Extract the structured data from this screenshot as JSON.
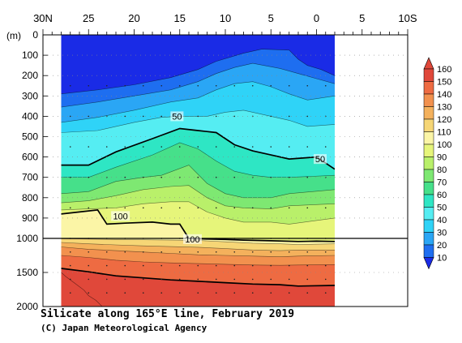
{
  "chart_data": {
    "type": "heatmap",
    "title": "Silicate along 165°E line, February 2019",
    "credit": "(C) Japan Meteorological Agency",
    "xlabel": "",
    "ylabel": "(m)",
    "x_ticks": [
      "30N",
      "25",
      "20",
      "15",
      "10",
      "5",
      "0",
      "5",
      "10S"
    ],
    "x_tick_lat": [
      30,
      25,
      20,
      15,
      10,
      5,
      0,
      -5,
      -10
    ],
    "xlim": [
      30,
      -10
    ],
    "data_lat_range": [
      28,
      -2
    ],
    "y_ticks_upper": [
      0,
      100,
      200,
      300,
      400,
      500,
      600,
      700,
      800,
      900,
      1000
    ],
    "y_ticks_lower": [
      1000,
      1500,
      2000
    ],
    "ylim": [
      0,
      2000
    ],
    "colorbar": {
      "levels": [
        10,
        20,
        30,
        40,
        50,
        60,
        70,
        80,
        90,
        100,
        110,
        120,
        130,
        140,
        150,
        160
      ],
      "labels": [
        "10",
        "20",
        "30",
        "40",
        "50",
        "60",
        "70",
        "80",
        "90",
        "100",
        "110",
        "120",
        "130",
        "140",
        "150",
        "160"
      ],
      "colors": [
        "#1a2be6",
        "#1e6ef0",
        "#2aa6f5",
        "#2fd3f7",
        "#55edf2",
        "#2ee6c4",
        "#46e08a",
        "#7ee872",
        "#b9f06a",
        "#e6f57a",
        "#fbf5a6",
        "#f6d676",
        "#f4b15c",
        "#f2914e",
        "#ee6b42",
        "#e0483a"
      ]
    },
    "contour_labels": [
      {
        "text": "50",
        "lat": 15.3,
        "depth": 400
      },
      {
        "text": "50",
        "lat": -0.4,
        "depth": 610
      },
      {
        "text": "100",
        "lat": 21.5,
        "depth": 890
      },
      {
        "text": "100",
        "lat": 13.6,
        "depth": 1010
      }
    ],
    "isolines": [
      {
        "value": 10,
        "points": [
          [
            28,
            290
          ],
          [
            24,
            270
          ],
          [
            20,
            245
          ],
          [
            16,
            210
          ],
          [
            13,
            170
          ],
          [
            11,
            130
          ],
          [
            8,
            90
          ],
          [
            6,
            70
          ],
          [
            3,
            75
          ],
          [
            2,
            120
          ],
          [
            1,
            150
          ],
          [
            -0.5,
            170
          ],
          [
            -2,
            200
          ]
        ]
      },
      {
        "value": 20,
        "points": [
          [
            28,
            355
          ],
          [
            24,
            330
          ],
          [
            20,
            300
          ],
          [
            16,
            270
          ],
          [
            13,
            230
          ],
          [
            11,
            190
          ],
          [
            9,
            160
          ],
          [
            7,
            140
          ],
          [
            4,
            165
          ],
          [
            2,
            190
          ],
          [
            0,
            215
          ],
          [
            -2,
            240
          ]
        ]
      },
      {
        "value": 30,
        "points": [
          [
            28,
            430
          ],
          [
            24,
            405
          ],
          [
            20,
            370
          ],
          [
            16,
            330
          ],
          [
            13,
            310
          ],
          [
            11,
            270
          ],
          [
            9,
            240
          ],
          [
            7,
            230
          ],
          [
            5,
            255
          ],
          [
            3,
            290
          ],
          [
            1,
            320
          ],
          [
            -2,
            300
          ]
        ]
      },
      {
        "value": 40,
        "points": [
          [
            28,
            480
          ],
          [
            24,
            470
          ],
          [
            20,
            430
          ],
          [
            17,
            405
          ],
          [
            15,
            400
          ],
          [
            12,
            400
          ],
          [
            10,
            380
          ],
          [
            8,
            370
          ],
          [
            5,
            400
          ],
          [
            3,
            420
          ],
          [
            1,
            450
          ],
          [
            -2,
            440
          ]
        ]
      },
      {
        "value": 50,
        "points": [
          [
            28,
            640
          ],
          [
            25,
            640
          ],
          [
            22,
            575
          ],
          [
            18,
            510
          ],
          [
            15,
            460
          ],
          [
            13,
            470
          ],
          [
            11,
            480
          ],
          [
            9,
            540
          ],
          [
            7,
            570
          ],
          [
            5,
            590
          ],
          [
            3,
            610
          ],
          [
            0,
            600
          ],
          [
            -2,
            660
          ]
        ]
      },
      {
        "value": 60,
        "points": [
          [
            28,
            700
          ],
          [
            25,
            700
          ],
          [
            22,
            650
          ],
          [
            18,
            590
          ],
          [
            15,
            530
          ],
          [
            13,
            560
          ],
          [
            11,
            620
          ],
          [
            9,
            670
          ],
          [
            7,
            690
          ],
          [
            5,
            700
          ],
          [
            3,
            700
          ],
          [
            -2,
            690
          ]
        ]
      },
      {
        "value": 70,
        "points": [
          [
            28,
            780
          ],
          [
            25,
            770
          ],
          [
            22,
            720
          ],
          [
            19,
            700
          ],
          [
            17,
            690
          ],
          [
            14,
            640
          ],
          [
            12,
            730
          ],
          [
            10,
            780
          ],
          [
            8,
            800
          ],
          [
            5,
            800
          ],
          [
            3,
            780
          ],
          [
            -2,
            760
          ]
        ]
      },
      {
        "value": 80,
        "points": [
          [
            28,
            825
          ],
          [
            25,
            815
          ],
          [
            22,
            790
          ],
          [
            19,
            760
          ],
          [
            16,
            745
          ],
          [
            14,
            740
          ],
          [
            12,
            800
          ],
          [
            10,
            840
          ],
          [
            8,
            850
          ],
          [
            5,
            855
          ],
          [
            3,
            840
          ],
          [
            -2,
            830
          ]
        ]
      },
      {
        "value": 90,
        "points": [
          [
            28,
            860
          ],
          [
            25,
            855
          ],
          [
            22,
            850
          ],
          [
            19,
            830
          ],
          [
            16,
            820
          ],
          [
            14,
            820
          ],
          [
            12,
            870
          ],
          [
            10,
            900
          ],
          [
            8,
            920
          ],
          [
            5,
            920
          ],
          [
            3,
            930
          ],
          [
            -2,
            900
          ]
        ]
      },
      {
        "value": 100,
        "points": [
          [
            28,
            880
          ],
          [
            26,
            870
          ],
          [
            24,
            860
          ],
          [
            23,
            930
          ],
          [
            21,
            925
          ],
          [
            18,
            920
          ],
          [
            16,
            930
          ],
          [
            15,
            930
          ],
          [
            14,
            1000
          ],
          [
            12,
            1010
          ],
          [
            10,
            1015
          ],
          [
            8,
            1025
          ],
          [
            5,
            1035
          ],
          [
            2,
            1045
          ],
          [
            0,
            1040
          ],
          [
            -2,
            1045
          ]
        ]
      },
      {
        "value": 110,
        "points": [
          [
            28,
            1005
          ],
          [
            25,
            1010
          ],
          [
            22,
            1015
          ],
          [
            19,
            1020
          ],
          [
            16,
            1025
          ],
          [
            13,
            1030
          ],
          [
            10,
            1050
          ],
          [
            7,
            1070
          ],
          [
            4,
            1080
          ],
          [
            2,
            1090
          ],
          [
            -2,
            1080
          ]
        ]
      },
      {
        "value": 120,
        "points": [
          [
            28,
            1060
          ],
          [
            25,
            1080
          ],
          [
            22,
            1095
          ],
          [
            19,
            1110
          ],
          [
            16,
            1120
          ],
          [
            13,
            1130
          ],
          [
            10,
            1150
          ],
          [
            7,
            1170
          ],
          [
            4,
            1180
          ],
          [
            2,
            1170
          ],
          [
            -2,
            1170
          ]
        ]
      },
      {
        "value": 130,
        "points": [
          [
            28,
            1125
          ],
          [
            25,
            1160
          ],
          [
            22,
            1180
          ],
          [
            19,
            1200
          ],
          [
            16,
            1220
          ],
          [
            13,
            1240
          ],
          [
            10,
            1250
          ],
          [
            7,
            1260
          ],
          [
            4,
            1270
          ],
          [
            2,
            1260
          ],
          [
            -2,
            1250
          ]
        ]
      },
      {
        "value": 140,
        "points": [
          [
            28,
            1250
          ],
          [
            25,
            1280
          ],
          [
            22,
            1320
          ],
          [
            19,
            1345
          ],
          [
            16,
            1360
          ],
          [
            13,
            1370
          ],
          [
            10,
            1380
          ],
          [
            7,
            1390
          ],
          [
            4,
            1395
          ],
          [
            2,
            1390
          ],
          [
            -2,
            1385
          ]
        ]
      },
      {
        "value": 150,
        "points": [
          [
            28,
            1440
          ],
          [
            25,
            1490
          ],
          [
            22,
            1550
          ],
          [
            19,
            1580
          ],
          [
            16,
            1610
          ],
          [
            13,
            1630
          ],
          [
            10,
            1650
          ],
          [
            7,
            1670
          ],
          [
            4,
            1680
          ],
          [
            2,
            1700
          ],
          [
            -2,
            1690
          ]
        ]
      },
      {
        "value": 160,
        "points": [
          [
            28,
            1500
          ],
          [
            27.5,
            1560
          ],
          [
            26.5,
            1660
          ],
          [
            25.5,
            1760
          ],
          [
            25,
            1840
          ],
          [
            24.2,
            1910
          ],
          [
            23.5,
            2000
          ]
        ]
      }
    ]
  }
}
